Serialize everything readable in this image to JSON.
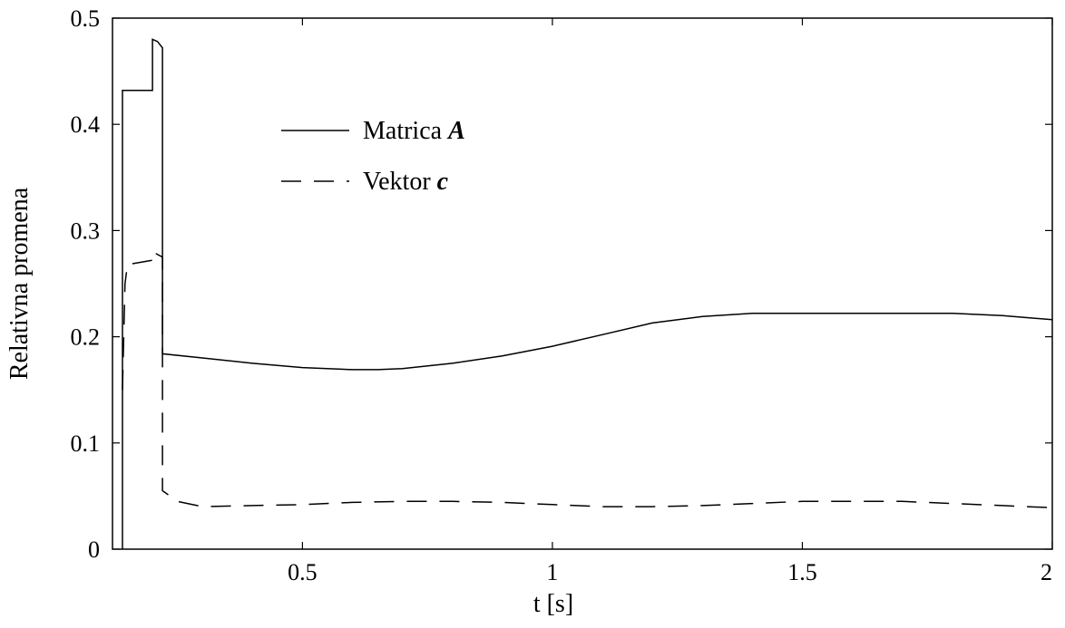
{
  "chart_data": {
    "type": "line",
    "title": "",
    "xlabel": "t [s]",
    "ylabel": "Relativna promena",
    "xlim": [
      0.12,
      2.0
    ],
    "ylim": [
      0,
      0.5
    ],
    "xticks": [
      0.5,
      1,
      1.5,
      2
    ],
    "xtick_labels": [
      "0.5",
      "1",
      "1.5",
      "2"
    ],
    "yticks": [
      0,
      0.1,
      0.2,
      0.3,
      0.4,
      0.5
    ],
    "ytick_labels": [
      "0",
      "0.1",
      "0.2",
      "0.3",
      "0.4",
      "0.5"
    ],
    "grid": false,
    "legend_position": "top-left",
    "series": [
      {
        "name": "Matrica",
        "name_symbol": "A",
        "line_style": "solid",
        "color": "#000000",
        "x": [
          0.14,
          0.14,
          0.2,
          0.2,
          0.21,
          0.22,
          0.22,
          0.3,
          0.4,
          0.5,
          0.6,
          0.65,
          0.7,
          0.8,
          0.9,
          1.0,
          1.1,
          1.2,
          1.3,
          1.4,
          1.5,
          1.6,
          1.7,
          1.8,
          1.9,
          2.0
        ],
        "y": [
          0.0,
          0.432,
          0.432,
          0.48,
          0.478,
          0.472,
          0.184,
          0.18,
          0.175,
          0.171,
          0.169,
          0.169,
          0.17,
          0.175,
          0.182,
          0.191,
          0.202,
          0.213,
          0.219,
          0.222,
          0.222,
          0.222,
          0.222,
          0.222,
          0.22,
          0.216
        ]
      },
      {
        "name": "Vektor",
        "name_symbol": "c",
        "line_style": "dashed",
        "color": "#000000",
        "x": [
          0.14,
          0.145,
          0.15,
          0.2,
          0.2,
          0.22,
          0.22,
          0.25,
          0.3,
          0.4,
          0.5,
          0.6,
          0.7,
          0.8,
          0.9,
          1.0,
          1.1,
          1.2,
          1.3,
          1.4,
          1.5,
          1.6,
          1.7,
          1.8,
          1.9,
          2.0
        ],
        "y": [
          0.15,
          0.25,
          0.268,
          0.272,
          0.28,
          0.275,
          0.055,
          0.045,
          0.04,
          0.041,
          0.042,
          0.044,
          0.045,
          0.045,
          0.044,
          0.042,
          0.04,
          0.04,
          0.041,
          0.043,
          0.045,
          0.045,
          0.045,
          0.043,
          0.041,
          0.039
        ]
      }
    ]
  }
}
